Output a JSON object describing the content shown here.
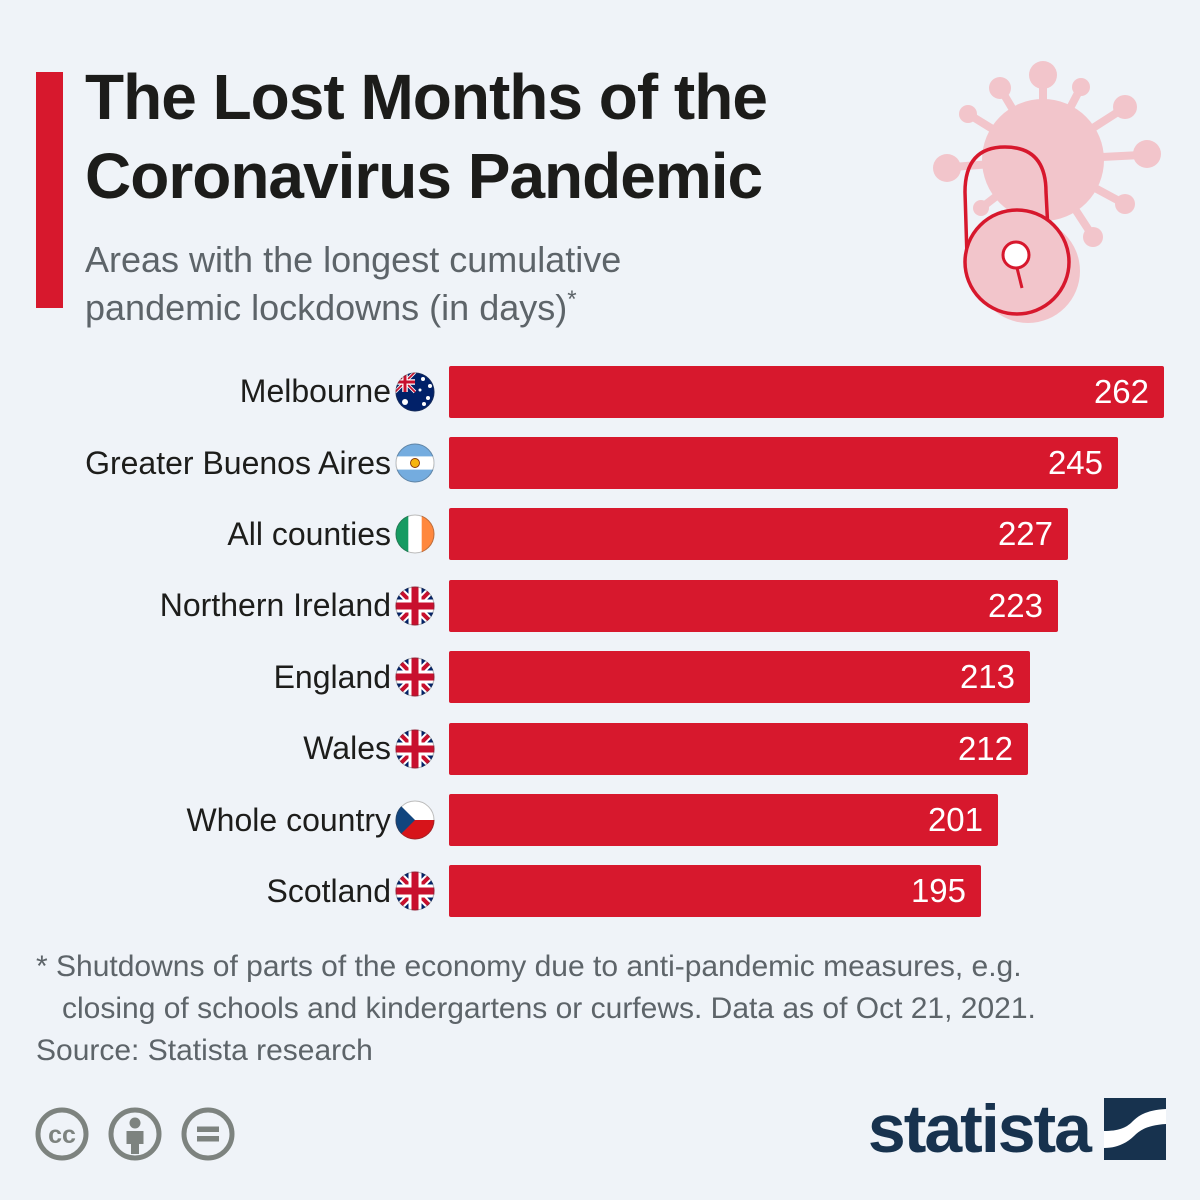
{
  "page": {
    "background_color": "#eff3f8",
    "accent_color": "#d7182d",
    "navy_color": "#17324e",
    "gray_color": "#5d6469"
  },
  "header": {
    "title_line1": "The Lost Months of the",
    "title_line2": "Coronavirus Pandemic",
    "subtitle": "Areas with the longest cumulative pandemic lockdowns (in days)",
    "subtitle_sup": "*",
    "decoration_icon": "virus-lock-icon"
  },
  "chart_data": {
    "type": "bar",
    "orientation": "horizontal",
    "title": "The Lost Months of the Coronavirus Pandemic",
    "subtitle": "Areas with the longest cumulative pandemic lockdowns (in days)*",
    "unit": "days",
    "xlim": [
      0,
      262
    ],
    "grid": false,
    "legend": false,
    "value_labels": "inside-right",
    "bar_color": "#d7182d",
    "max_value": 262,
    "categories": [
      "Melbourne",
      "Greater Buenos Aires",
      "All counties",
      "Northern Ireland",
      "England",
      "Wales",
      "Whole country",
      "Scotland"
    ],
    "values": [
      262,
      245,
      227,
      223,
      213,
      212,
      201,
      195
    ],
    "flags": [
      "au",
      "ar",
      "ie",
      "gb",
      "gb",
      "gb",
      "cz",
      "gb"
    ],
    "flag_names": [
      "australia-flag-icon",
      "argentina-flag-icon",
      "ireland-flag-icon",
      "uk-flag-icon",
      "uk-flag-icon",
      "uk-flag-icon",
      "czech-republic-flag-icon",
      "uk-flag-icon"
    ]
  },
  "footnote": {
    "line1": "* Shutdowns of parts of the economy due to anti-pandemic measures, e.g.",
    "line2": "closing of schools and kindergartens or curfews. Data as of Oct 21, 2021.",
    "source": "Source: Statista research"
  },
  "footer": {
    "brand": "statista",
    "brand_mark_icon": "statista-logo-icon",
    "license_icons": [
      "cc-icon",
      "attribution-icon",
      "no-derivatives-icon"
    ]
  }
}
